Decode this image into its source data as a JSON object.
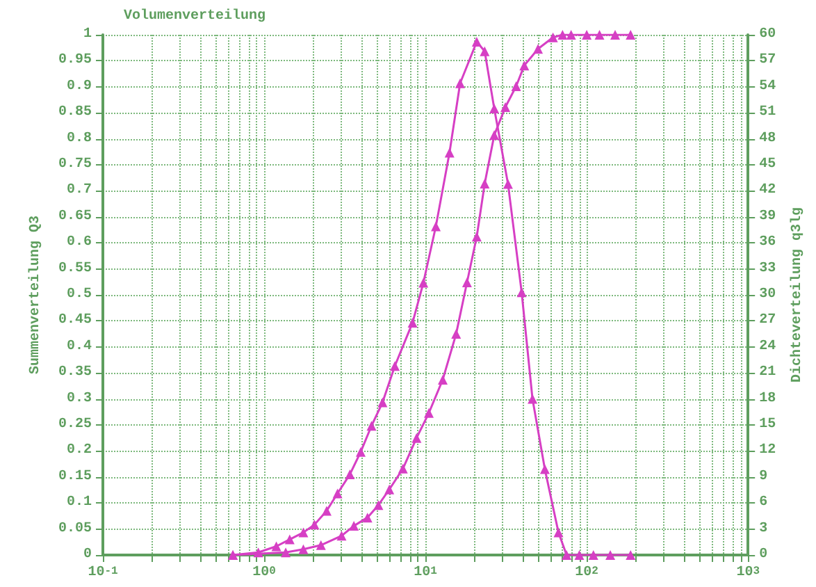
{
  "chart_data": {
    "type": "line",
    "title": "Volumenverteilung",
    "ylabel": "Summenverteilung Q3",
    "y2label": "Dichteverteilung q3lg",
    "log": "x",
    "grid": true,
    "marker": "triangle",
    "line_style": "solid",
    "xlim": [
      0.1,
      1000
    ],
    "xticks": [
      {
        "value": 0.1,
        "label": "10$^{-1}$"
      },
      {
        "value": 1,
        "label": "10$^{0}$"
      },
      {
        "value": 10,
        "label": "10$^{1}$"
      },
      {
        "value": 100,
        "label": "10$^{2}$"
      },
      {
        "value": 1000,
        "label": "10$^{3}$"
      }
    ],
    "ylim": [
      0,
      1
    ],
    "yticks": [
      0,
      0.05,
      0.1,
      0.15,
      0.2,
      0.25,
      0.3,
      0.35,
      0.4,
      0.45,
      0.5,
      0.55,
      0.6,
      0.65,
      0.7,
      0.75,
      0.8,
      0.85,
      0.9,
      0.95,
      1
    ],
    "y2lim": [
      0,
      60
    ],
    "y2ticks": [
      0,
      3,
      6,
      9,
      12,
      15,
      18,
      21,
      24,
      27,
      30,
      33,
      36,
      39,
      42,
      45,
      48,
      51,
      54,
      57,
      60
    ],
    "series": [
      {
        "color": "#d63fc4",
        "axis": "y",
        "x": [
          0.64,
          1.36,
          1.75,
          2.25,
          3.02,
          3.6,
          4.37,
          5.11,
          5.97,
          7.25,
          8.81,
          10.5,
          12.8,
          15.5,
          18.1,
          20.8,
          23.3,
          26.7,
          31.3,
          36.5,
          41,
          49.9,
          61.8,
          70.8,
          80,
          100,
          120,
          150,
          187
        ],
        "values": [
          0,
          0.005,
          0.011,
          0.019,
          0.037,
          0.056,
          0.072,
          0.096,
          0.126,
          0.166,
          0.225,
          0.273,
          0.337,
          0.425,
          0.524,
          0.612,
          0.714,
          0.807,
          0.861,
          0.901,
          0.941,
          0.973,
          0.995,
          1,
          1,
          1,
          1,
          1,
          1
        ]
      },
      {
        "color": "#d63fc4",
        "axis": "y2",
        "x": [
          0.64,
          0.92,
          1.19,
          1.44,
          1.75,
          2.05,
          2.44,
          2.85,
          3.4,
          3.97,
          4.63,
          5.42,
          6.46,
          8.32,
          9.71,
          11.6,
          14.1,
          16.4,
          20.8,
          23.3,
          26.7,
          32.5,
          39.5,
          46.1,
          55,
          66.8,
          75,
          90,
          110,
          140,
          187
        ],
        "values": [
          0,
          0.3,
          1,
          1.8,
          2.6,
          3.5,
          5.1,
          7.1,
          9.3,
          11.9,
          14.9,
          17.6,
          21.8,
          26.8,
          31.4,
          37.9,
          46.4,
          54.4,
          59.2,
          58.1,
          51.5,
          42.8,
          30.3,
          18,
          9.9,
          2.6,
          0,
          0,
          0,
          0,
          0
        ]
      }
    ]
  }
}
